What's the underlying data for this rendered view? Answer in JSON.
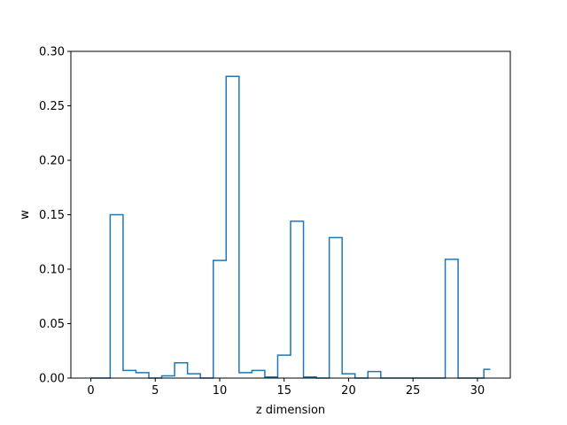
{
  "chart_data": {
    "type": "step",
    "title": "",
    "xlabel": "z dimension",
    "ylabel": "w",
    "xlim": [
      -1.55,
      32.55
    ],
    "ylim": [
      0,
      0.3
    ],
    "xticks": [
      0,
      5,
      10,
      15,
      20,
      25,
      30
    ],
    "yticks": [
      0.0,
      0.05,
      0.1,
      0.15,
      0.2,
      0.25,
      0.3
    ],
    "ytick_labels": [
      "0.00",
      "0.05",
      "0.10",
      "0.15",
      "0.20",
      "0.25",
      "0.30"
    ],
    "grid": false,
    "line_color": "#1f77b4",
    "step_where": "mid",
    "x": [
      0,
      1,
      2,
      3,
      4,
      5,
      6,
      7,
      8,
      9,
      10,
      11,
      12,
      13,
      14,
      15,
      16,
      17,
      18,
      19,
      20,
      21,
      22,
      23,
      24,
      25,
      26,
      27,
      28,
      29,
      30,
      31
    ],
    "values": [
      0.0,
      0.0,
      0.15,
      0.007,
      0.005,
      0.0,
      0.002,
      0.014,
      0.004,
      0.0,
      0.108,
      0.277,
      0.005,
      0.007,
      0.001,
      0.021,
      0.144,
      0.001,
      0.0,
      0.129,
      0.004,
      0.0,
      0.006,
      0.0,
      0.0,
      0.0,
      0.0,
      0.0,
      0.109,
      0.0,
      0.0,
      0.008
    ]
  }
}
